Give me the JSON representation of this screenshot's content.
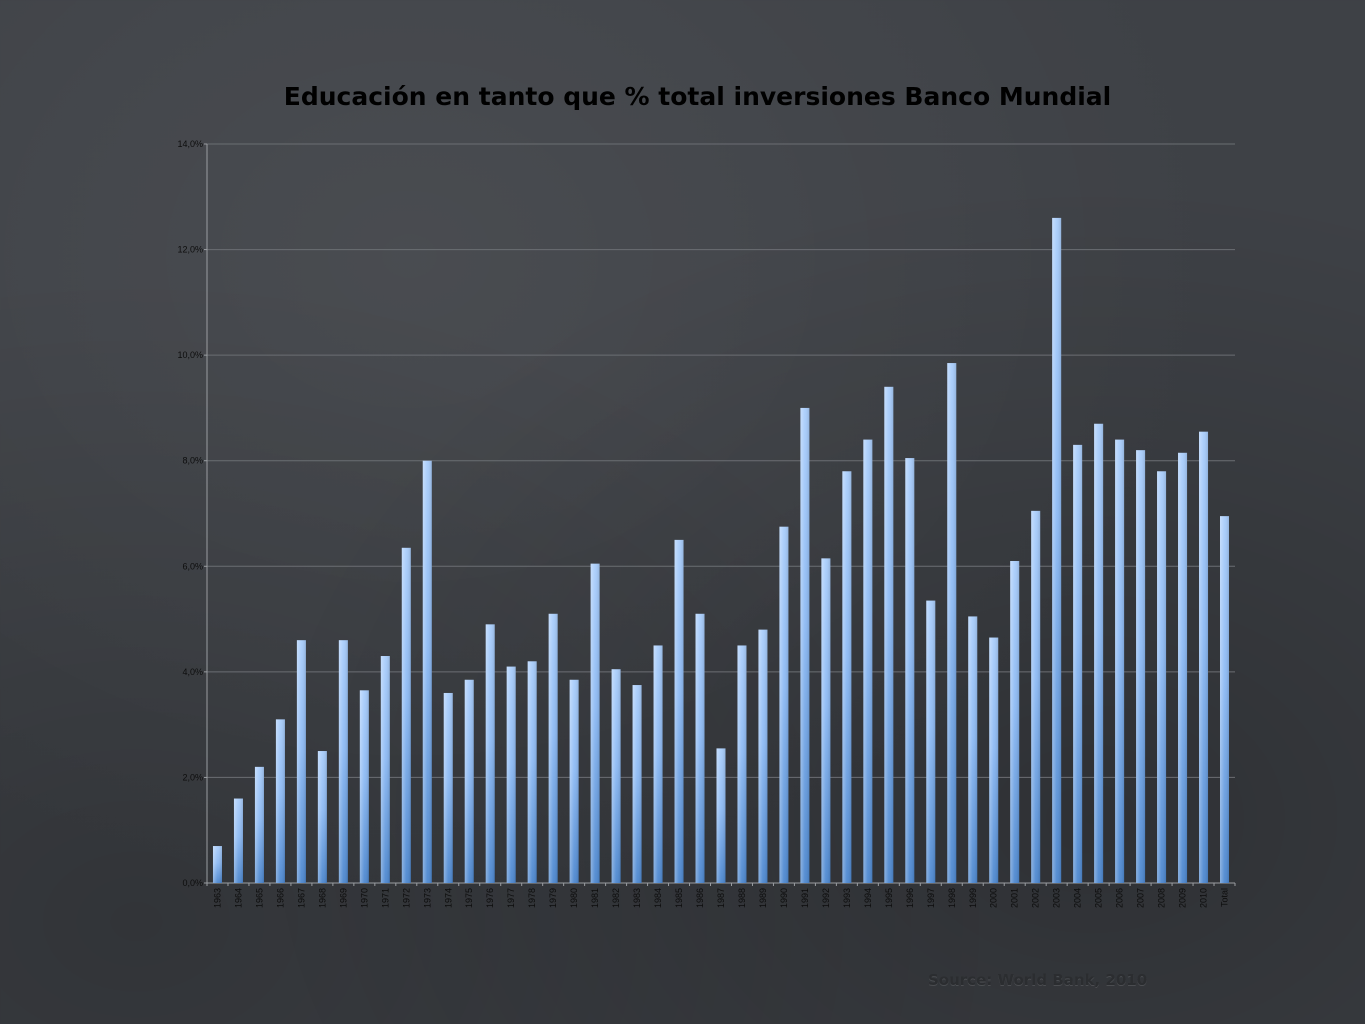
{
  "slide": {
    "source": "Source: World Bank, 2010"
  },
  "chart_data": {
    "type": "bar",
    "title": "Educación en tanto que % total inversiones Banco Mundial",
    "xlabel": "",
    "ylabel": "",
    "ylim": [
      0,
      14
    ],
    "yticks": [
      "0,0%",
      "2,0%",
      "4,0%",
      "6,0%",
      "8,0%",
      "10,0%",
      "12,0%",
      "14,0%"
    ],
    "grid": true,
    "legend": "none",
    "bar_color": "#7fb0f0",
    "categories": [
      "1963",
      "1964",
      "1965",
      "1966",
      "1967",
      "1968",
      "1969",
      "1970",
      "1971",
      "1972",
      "1973",
      "1974",
      "1975",
      "1976",
      "1977",
      "1978",
      "1979",
      "1980",
      "1981",
      "1982",
      "1983",
      "1984",
      "1985",
      "1986",
      "1987",
      "1988",
      "1989",
      "1990",
      "1991",
      "1992",
      "1993",
      "1994",
      "1995",
      "1996",
      "1997",
      "1998",
      "1999",
      "2000",
      "2001",
      "2002",
      "2003",
      "2004",
      "2005",
      "2006",
      "2007",
      "2008",
      "2009",
      "2010",
      "Total"
    ],
    "values": [
      0.7,
      1.6,
      2.2,
      3.1,
      4.6,
      2.5,
      4.6,
      3.65,
      4.3,
      6.35,
      8.0,
      3.6,
      3.85,
      4.9,
      4.1,
      4.2,
      5.1,
      3.85,
      6.05,
      4.05,
      3.75,
      4.5,
      6.5,
      5.1,
      2.55,
      4.5,
      4.8,
      6.75,
      9.0,
      6.15,
      7.8,
      8.4,
      9.4,
      8.05,
      5.35,
      9.85,
      5.05,
      4.65,
      6.1,
      7.05,
      12.6,
      8.3,
      8.7,
      8.4,
      8.2,
      7.8,
      8.15,
      8.55,
      6.95
    ]
  }
}
